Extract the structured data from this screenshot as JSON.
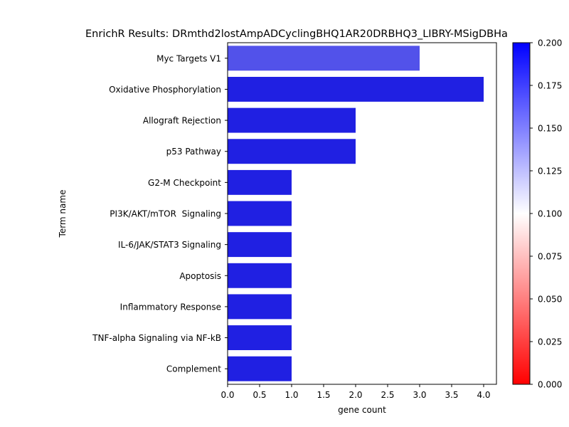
{
  "chart_data": {
    "type": "bar",
    "orientation": "horizontal",
    "title": "EnrichR Results: DRmthd2lostAmpADCyclingBHQ1AR20DRBHQ3_LIBRY-MSigDBHa",
    "xlabel": "gene count",
    "ylabel": "Term name",
    "xlim": [
      0,
      4.2
    ],
    "xticks": [
      "0.0",
      "0.5",
      "1.0",
      "1.5",
      "2.0",
      "2.5",
      "3.0",
      "3.5",
      "4.0"
    ],
    "categories": [
      "Myc Targets V1",
      "Oxidative Phosphorylation",
      "Allograft Rejection",
      "p53 Pathway",
      "G2-M Checkpoint",
      "PI3K/AKT/mTOR  Signaling",
      "IL-6/JAK/STAT3 Signaling",
      "Apoptosis",
      "Inflammatory Response",
      "TNF-alpha Signaling via NF-kB",
      "Complement"
    ],
    "values": [
      3,
      4,
      2,
      2,
      1,
      1,
      1,
      1,
      1,
      1,
      1
    ],
    "bar_colors": [
      "#5252ea",
      "#2020e2",
      "#2020e2",
      "#2020e2",
      "#2020e2",
      "#2020e2",
      "#2020e2",
      "#2020e2",
      "#2020e2",
      "#2020e2",
      "#2020e2"
    ],
    "grid": false,
    "colorbar": {
      "range": [
        0.0,
        0.2
      ],
      "ticks": [
        "0.000",
        "0.025",
        "0.050",
        "0.075",
        "0.100",
        "0.125",
        "0.150",
        "0.175",
        "0.200"
      ],
      "colors": [
        "#ff0000",
        "#ffffff",
        "#0000ff"
      ]
    }
  }
}
